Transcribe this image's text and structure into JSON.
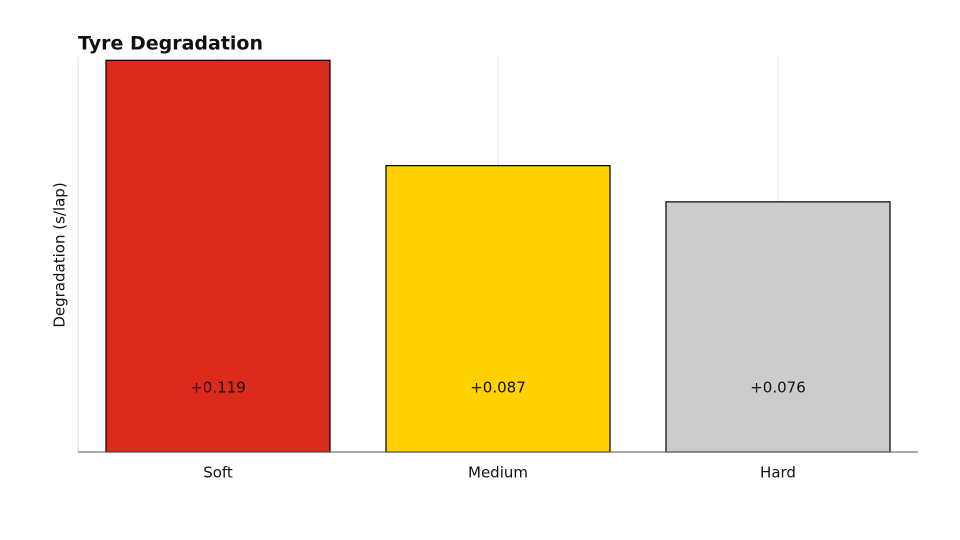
{
  "chart_data": {
    "type": "bar",
    "title": "Tyre Degradation",
    "y_label": "Degradation (s/lap)",
    "categories": [
      "Soft",
      "Medium",
      "Hard"
    ],
    "values": [
      0.119,
      0.087,
      0.076
    ],
    "value_labels": [
      "+0.119",
      "+0.087",
      "+0.076"
    ],
    "colors": [
      "#dc2a1c",
      "#ffd100",
      "#cccccc"
    ],
    "ylim": [
      0,
      0.12
    ],
    "grid": true
  }
}
